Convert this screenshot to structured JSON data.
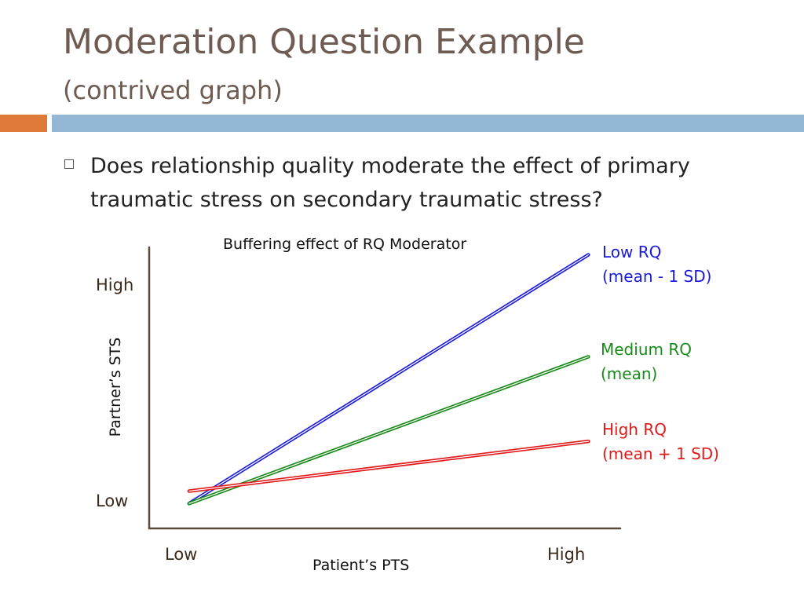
{
  "slide": {
    "title": "Moderation Question Example",
    "subtitle": "(contrived graph)",
    "bullet": "Does relationship quality moderate the effect of primary traumatic stress on secondary traumatic stress?"
  },
  "colors": {
    "title": "#6e5c52",
    "accent_orange": "#e07a3a",
    "accent_blue": "#94b7d6",
    "axis": "#5a4a3c"
  },
  "chart_data": {
    "type": "line",
    "title": "Buffering effect of RQ Moderator",
    "xlabel": "Patient’s PTS",
    "ylabel": "Partner’s STS",
    "x_ticks": [
      "Low",
      "High"
    ],
    "y_ticks": [
      "Low",
      "High"
    ],
    "x": [
      0,
      1
    ],
    "xlim": [
      -0.1,
      1.08
    ],
    "ylim": [
      -0.1,
      1.03
    ],
    "grid": false,
    "series": [
      {
        "name": "Low RQ",
        "label_lines": [
          "Low RQ",
          "(mean - 1 SD)"
        ],
        "color": "#1a1adb",
        "values": [
          0.0,
          1.0
        ]
      },
      {
        "name": "Medium RQ",
        "label_lines": [
          "Medium RQ",
          "(mean)"
        ],
        "color": "#1a8a1a",
        "values": [
          0.0,
          0.59
        ]
      },
      {
        "name": "High RQ",
        "label_lines": [
          "High RQ",
          "(mean + 1 SD)"
        ],
        "color": "#e01a1a",
        "values": [
          0.05,
          0.25
        ]
      }
    ]
  }
}
